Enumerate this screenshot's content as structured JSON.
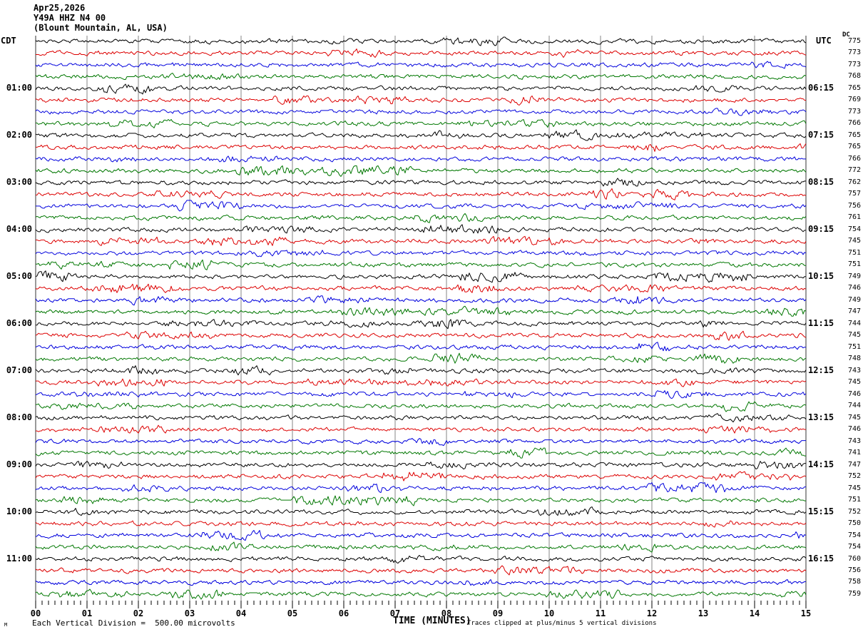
{
  "title": {
    "date": "Apr25,2026",
    "station": "Y49A HHZ N4 00",
    "location": "(Blount Mountain, AL, USA)"
  },
  "axes": {
    "left_header": "CDT",
    "right_header": "UTC",
    "dc_header": "DC",
    "x_axis_title": "TIME (MINUTES)",
    "x_tick_labels": [
      "00",
      "01",
      "02",
      "03",
      "04",
      "05",
      "06",
      "07",
      "08",
      "09",
      "10",
      "11",
      "12",
      "13",
      "14",
      "15"
    ]
  },
  "footer": {
    "scale_note": "Each Vertical Division =  500.00 microvolts",
    "clip_note": "Traces clipped at plus/minus 5 vertical divisions",
    "watermark": "M"
  },
  "chart_data": {
    "type": "line",
    "subtype": "helicorder-seismogram",
    "x_label": "TIME (MINUTES)",
    "x_range": [
      0,
      15
    ],
    "minutes_per_line": 15,
    "lines_per_hour": 4,
    "local_timezone": "CDT",
    "utc_timezone": "UTC",
    "vertical_division_microvolts": 500.0,
    "clip_divisions": 5,
    "trace_colors": [
      "#000000",
      "#dd0000",
      "#0000dd",
      "#007700"
    ],
    "grid_color": "#848484",
    "edge_color": "#333333",
    "noise_seed": 1337,
    "events": [
      {
        "row": 22,
        "minute": 11.8
      },
      {
        "row": 24,
        "minute": 8.0
      }
    ],
    "rows": [
      {
        "dc": 775,
        "cdt": "",
        "utc": ""
      },
      {
        "dc": 773,
        "cdt": "",
        "utc": ""
      },
      {
        "dc": 773,
        "cdt": "",
        "utc": ""
      },
      {
        "dc": 768,
        "cdt": "",
        "utc": ""
      },
      {
        "dc": 765,
        "cdt": "01:00",
        "utc": "06:15"
      },
      {
        "dc": 769,
        "cdt": "",
        "utc": ""
      },
      {
        "dc": 773,
        "cdt": "",
        "utc": ""
      },
      {
        "dc": 766,
        "cdt": "",
        "utc": ""
      },
      {
        "dc": 765,
        "cdt": "02:00",
        "utc": "07:15"
      },
      {
        "dc": 765,
        "cdt": "",
        "utc": ""
      },
      {
        "dc": 766,
        "cdt": "",
        "utc": ""
      },
      {
        "dc": 772,
        "cdt": "",
        "utc": ""
      },
      {
        "dc": 762,
        "cdt": "03:00",
        "utc": "08:15"
      },
      {
        "dc": 757,
        "cdt": "",
        "utc": ""
      },
      {
        "dc": 756,
        "cdt": "",
        "utc": ""
      },
      {
        "dc": 761,
        "cdt": "",
        "utc": ""
      },
      {
        "dc": 754,
        "cdt": "04:00",
        "utc": "09:15"
      },
      {
        "dc": 745,
        "cdt": "",
        "utc": ""
      },
      {
        "dc": 751,
        "cdt": "",
        "utc": ""
      },
      {
        "dc": 751,
        "cdt": "",
        "utc": ""
      },
      {
        "dc": 749,
        "cdt": "05:00",
        "utc": "10:15"
      },
      {
        "dc": 746,
        "cdt": "",
        "utc": ""
      },
      {
        "dc": 749,
        "cdt": "",
        "utc": ""
      },
      {
        "dc": 747,
        "cdt": "",
        "utc": ""
      },
      {
        "dc": 744,
        "cdt": "06:00",
        "utc": "11:15"
      },
      {
        "dc": 745,
        "cdt": "",
        "utc": ""
      },
      {
        "dc": 751,
        "cdt": "",
        "utc": ""
      },
      {
        "dc": 748,
        "cdt": "",
        "utc": ""
      },
      {
        "dc": 743,
        "cdt": "07:00",
        "utc": "12:15"
      },
      {
        "dc": 745,
        "cdt": "",
        "utc": ""
      },
      {
        "dc": 746,
        "cdt": "",
        "utc": ""
      },
      {
        "dc": 744,
        "cdt": "",
        "utc": ""
      },
      {
        "dc": 745,
        "cdt": "08:00",
        "utc": "13:15"
      },
      {
        "dc": 746,
        "cdt": "",
        "utc": ""
      },
      {
        "dc": 743,
        "cdt": "",
        "utc": ""
      },
      {
        "dc": 741,
        "cdt": "",
        "utc": ""
      },
      {
        "dc": 747,
        "cdt": "09:00",
        "utc": "14:15"
      },
      {
        "dc": 752,
        "cdt": "",
        "utc": ""
      },
      {
        "dc": 745,
        "cdt": "",
        "utc": ""
      },
      {
        "dc": 751,
        "cdt": "",
        "utc": ""
      },
      {
        "dc": 752,
        "cdt": "10:00",
        "utc": "15:15"
      },
      {
        "dc": 750,
        "cdt": "",
        "utc": ""
      },
      {
        "dc": 754,
        "cdt": "",
        "utc": ""
      },
      {
        "dc": 754,
        "cdt": "",
        "utc": ""
      },
      {
        "dc": 760,
        "cdt": "11:00",
        "utc": "16:15"
      },
      {
        "dc": 756,
        "cdt": "",
        "utc": ""
      },
      {
        "dc": 758,
        "cdt": "",
        "utc": ""
      },
      {
        "dc": 759,
        "cdt": "",
        "utc": ""
      }
    ]
  }
}
